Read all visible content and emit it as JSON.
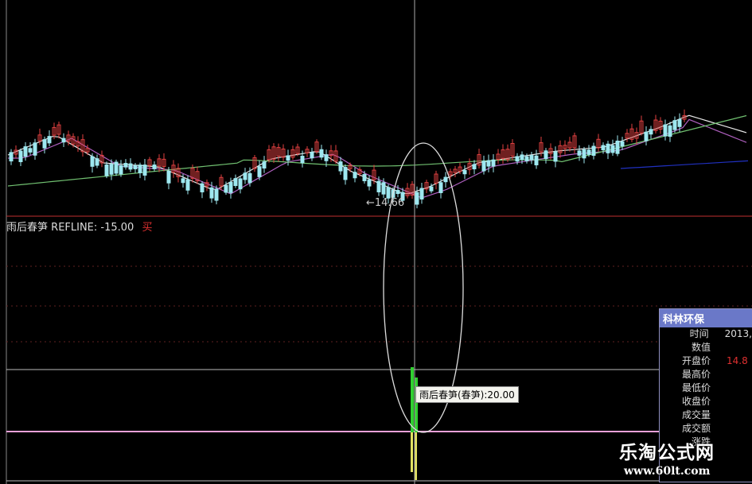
{
  "indicator": {
    "name": "雨后春笋",
    "refline_label": "REFLINE: -15.00",
    "signal": "买"
  },
  "price_panel": {
    "low_marker": "←14.66"
  },
  "tooltip": {
    "text": "雨后春笋(春笋):20.00"
  },
  "info_panel": {
    "title": "科林环保",
    "rows": [
      {
        "label": "时间",
        "value": "2013,"
      },
      {
        "label": "数值",
        "value": ""
      },
      {
        "label": "开盘价",
        "value": "14.8"
      },
      {
        "label": "最高价",
        "value": ""
      },
      {
        "label": "最低价",
        "value": ""
      },
      {
        "label": "收盘价",
        "value": ""
      },
      {
        "label": "成交量",
        "value": ""
      },
      {
        "label": "成交额",
        "value": ""
      },
      {
        "label": "涨跌",
        "value": ""
      }
    ]
  },
  "watermark": {
    "name": "乐淘公式网",
    "url": "www.60lt.com"
  },
  "colors": {
    "up": "#e04040",
    "down": "#9ee8f0",
    "ma_white": "#e8e8e8",
    "ma_purple": "#b060c0",
    "ma_green": "#70c070",
    "ma_blue": "#2030c0",
    "refline": "#e080c0",
    "crosshair": "#aaaaaa"
  }
}
